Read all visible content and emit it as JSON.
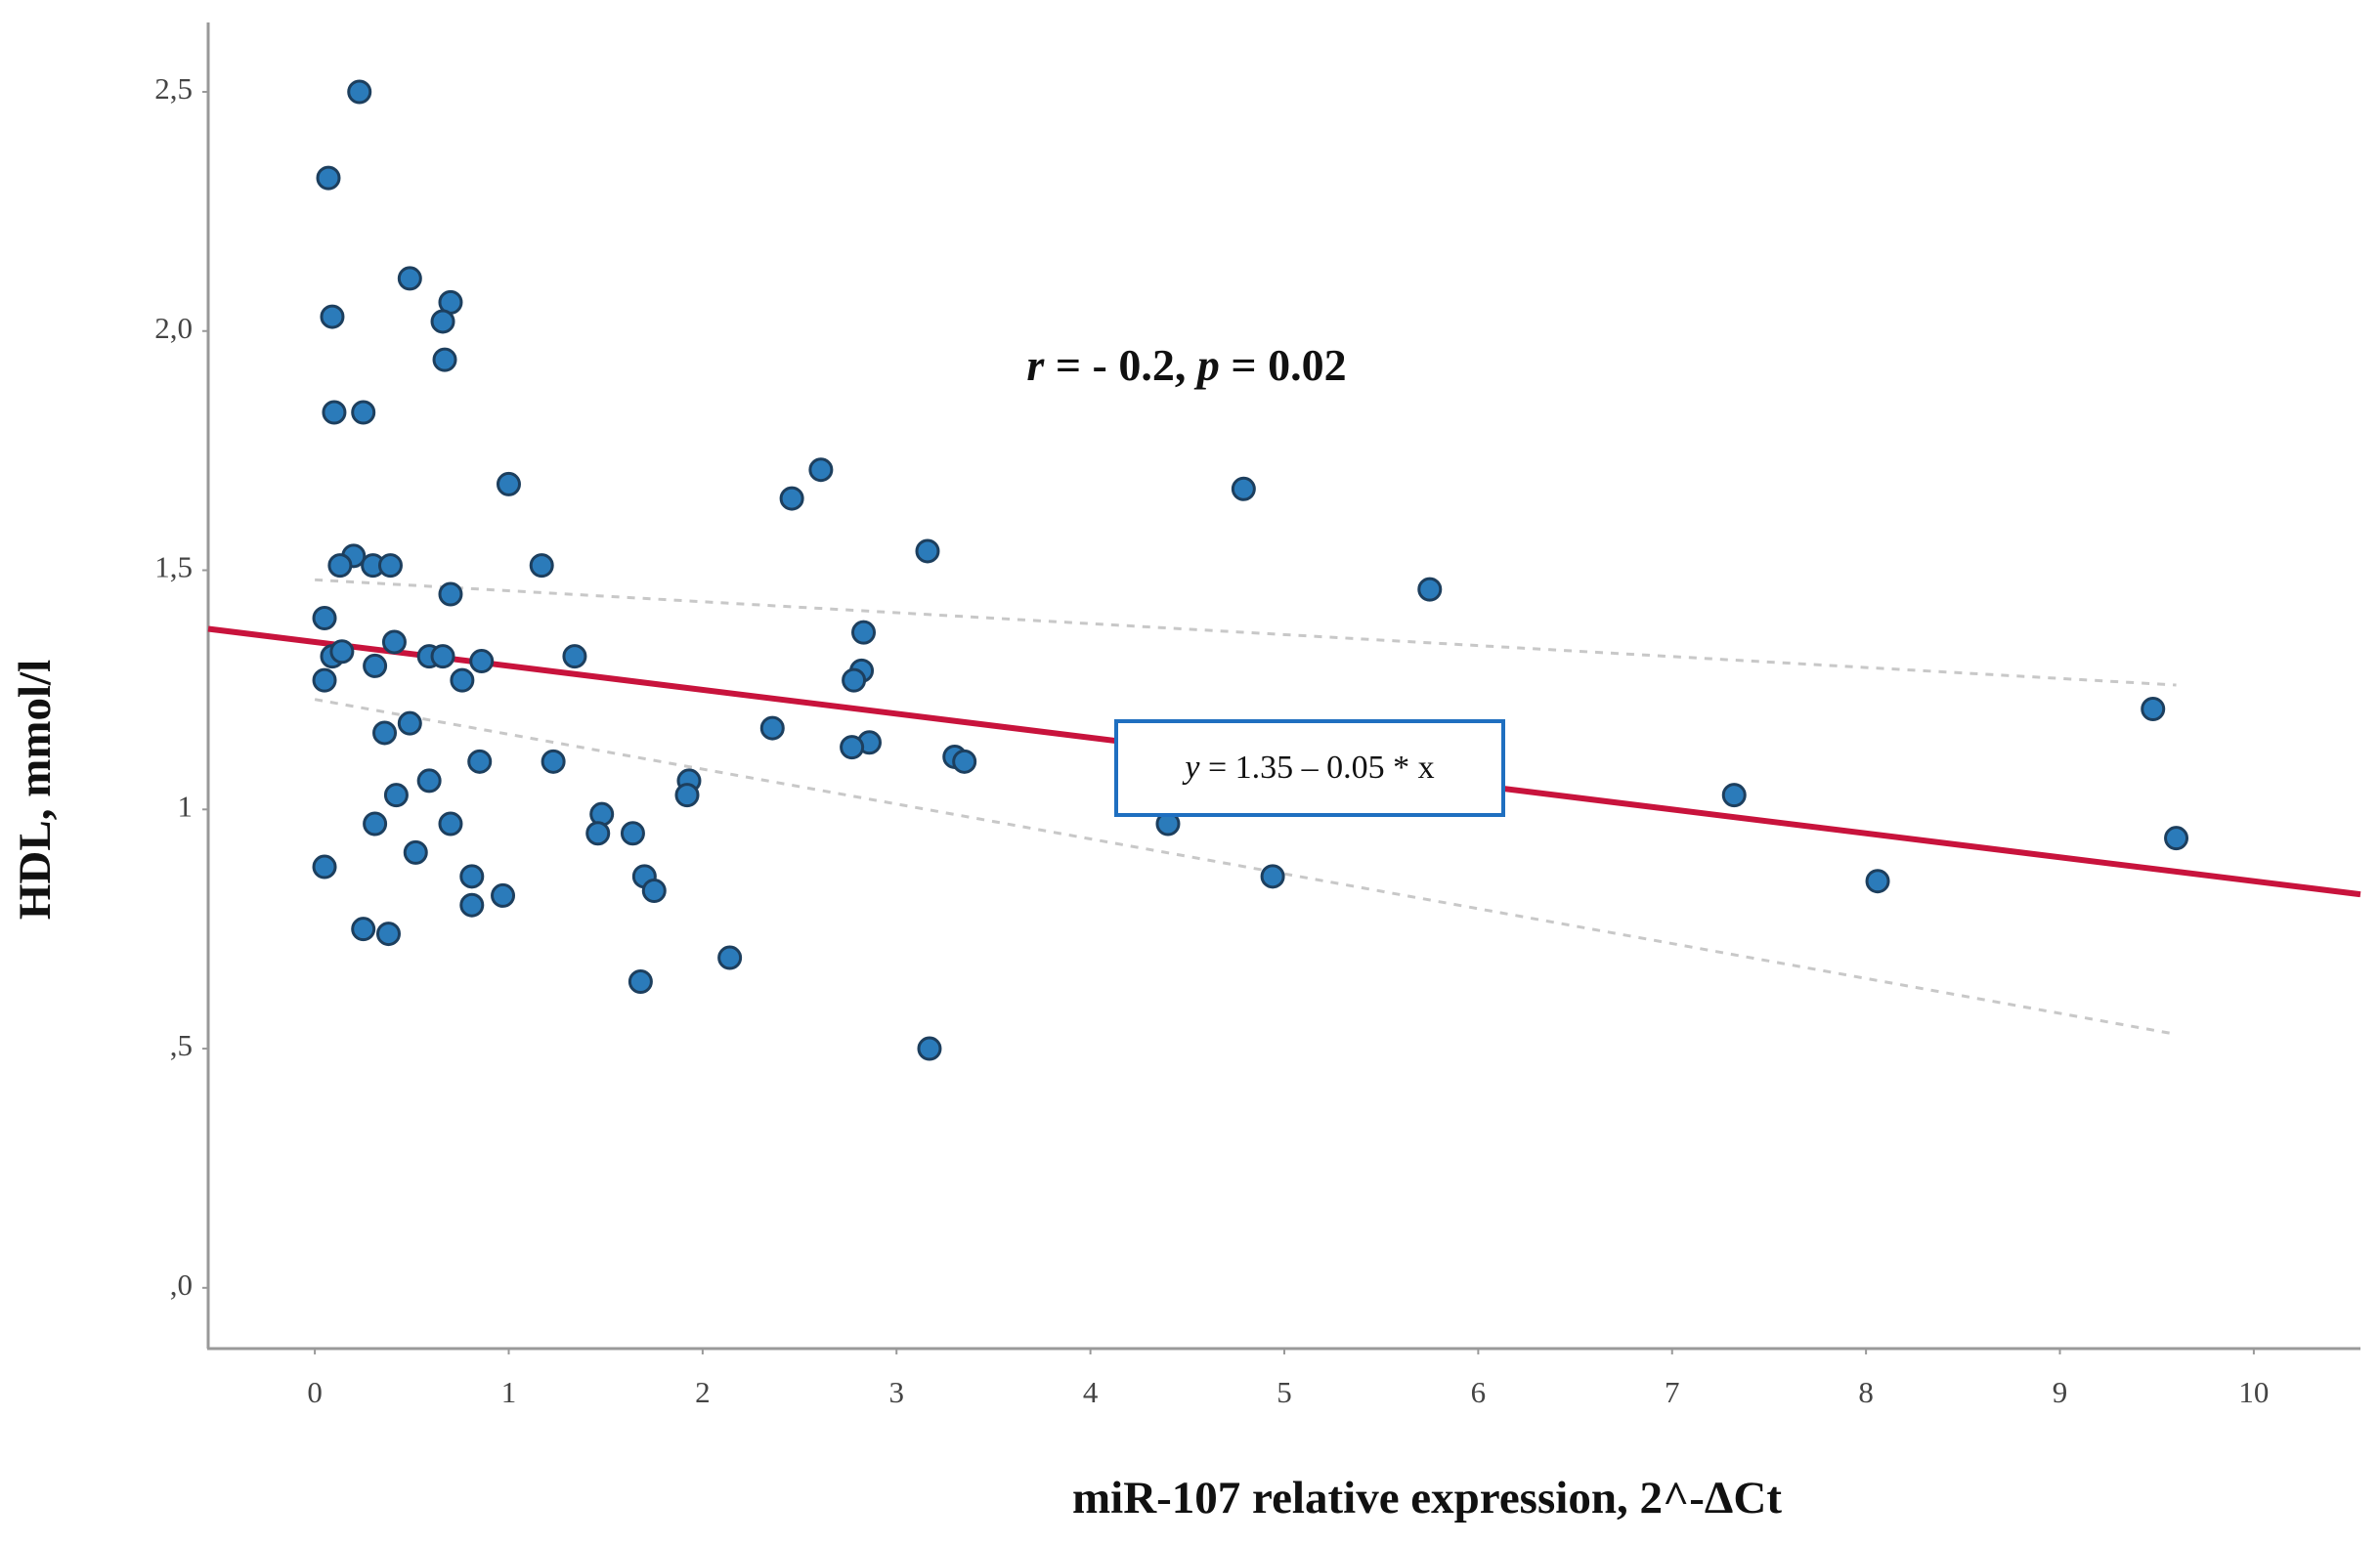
{
  "chart_data": {
    "type": "scatter",
    "x_label": "miR-107 relative expression,  2^-ΔCt",
    "y_label": "HDL, mmol/l",
    "annotation_parts": [
      "r",
      " = - 0.2, ",
      "p",
      " = 0.02"
    ],
    "equation_parts": [
      "y",
      " = 1.35 – 0.05 * x"
    ],
    "x": [
      0.23,
      0.07,
      0.49,
      0.7,
      0.09,
      0.66,
      0.67,
      0.1,
      0.25,
      2.61,
      1.0,
      2.46,
      4.79,
      3.16,
      0.2,
      0.13,
      0.3,
      0.39,
      1.17,
      5.75,
      0.7,
      0.05,
      2.83,
      0.41,
      0.09,
      0.14,
      0.59,
      0.66,
      1.34,
      0.86,
      0.31,
      2.82,
      2.78,
      0.05,
      0.76,
      9.48,
      0.49,
      2.36,
      0.36,
      2.86,
      2.77,
      3.3,
      3.35,
      0.85,
      1.23,
      0.59,
      1.93,
      1.92,
      0.42,
      7.32,
      1.48,
      0.31,
      0.7,
      4.4,
      1.46,
      1.64,
      9.6,
      0.52,
      0.05,
      0.81,
      4.94,
      1.7,
      1.75,
      8.06,
      0.97,
      0.81,
      0.25,
      0.38,
      2.14,
      1.68,
      3.17
    ],
    "values": [
      2.5,
      2.32,
      2.11,
      2.06,
      2.03,
      2.02,
      1.94,
      1.83,
      1.83,
      1.71,
      1.68,
      1.65,
      1.67,
      1.54,
      1.53,
      1.51,
      1.51,
      1.51,
      1.51,
      1.46,
      1.45,
      1.4,
      1.37,
      1.35,
      1.32,
      1.33,
      1.32,
      1.32,
      1.32,
      1.31,
      1.3,
      1.29,
      1.27,
      1.27,
      1.27,
      1.21,
      1.18,
      1.17,
      1.16,
      1.14,
      1.13,
      1.11,
      1.1,
      1.1,
      1.1,
      1.06,
      1.06,
      1.03,
      1.03,
      1.03,
      0.99,
      0.97,
      0.97,
      0.97,
      0.95,
      0.95,
      0.94,
      0.91,
      0.88,
      0.86,
      0.86,
      0.86,
      0.83,
      0.85,
      0.82,
      0.8,
      0.75,
      0.74,
      0.69,
      0.64,
      0.5
    ],
    "color": "#2b7bba",
    "edge_color": "#1d3f5e",
    "fit_line": {
      "intercept": 1.35,
      "slope": -0.05,
      "color": "#c8133c"
    },
    "confidence_band": {
      "x": [
        0,
        9.6
      ],
      "upper": [
        1.48,
        1.26
      ],
      "lower": [
        1.23,
        0.53
      ],
      "color": "#c8c8c8"
    },
    "xlim": [
      -0.55,
      10.55
    ],
    "ylim": [
      -0.127,
      2.645
    ],
    "xticks": [
      0,
      1,
      2,
      3,
      4,
      5,
      6,
      7,
      8,
      9,
      10
    ],
    "yticks": [
      {
        "value": 0,
        "label": ",0"
      },
      {
        "value": 0.5,
        "label": ",5"
      },
      1,
      {
        "value": 1.5,
        "label": "1,5"
      },
      {
        "value": 2,
        "label": "2,0"
      },
      {
        "value": 2.5,
        "label": "2,5"
      }
    ],
    "grid": false
  }
}
